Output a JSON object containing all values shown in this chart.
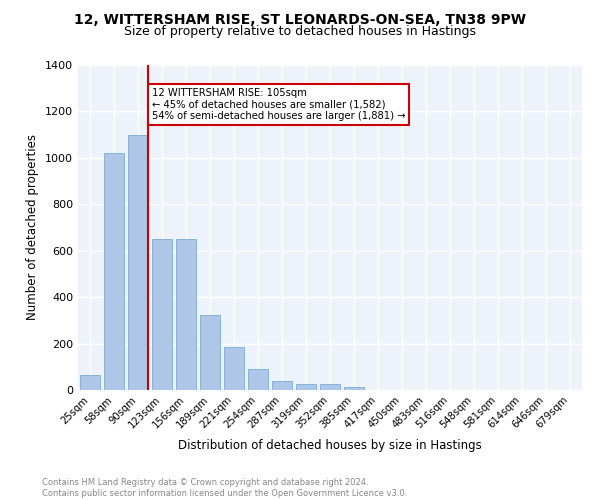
{
  "title1": "12, WITTERSHAM RISE, ST LEONARDS-ON-SEA, TN38 9PW",
  "title2": "Size of property relative to detached houses in Hastings",
  "xlabel": "Distribution of detached houses by size in Hastings",
  "ylabel": "Number of detached properties",
  "categories": [
    "25sqm",
    "58sqm",
    "90sqm",
    "123sqm",
    "156sqm",
    "189sqm",
    "221sqm",
    "254sqm",
    "287sqm",
    "319sqm",
    "352sqm",
    "385sqm",
    "417sqm",
    "450sqm",
    "483sqm",
    "516sqm",
    "548sqm",
    "581sqm",
    "614sqm",
    "646sqm",
    "679sqm"
  ],
  "values": [
    65,
    1020,
    1100,
    650,
    650,
    325,
    185,
    90,
    40,
    28,
    25,
    15,
    0,
    0,
    0,
    0,
    0,
    0,
    0,
    0,
    0
  ],
  "bar_color": "#aec6e8",
  "bar_edge_color": "#7aadd4",
  "vline_color": "#cc0000",
  "annotation_text": "12 WITTERSHAM RISE: 105sqm\n← 45% of detached houses are smaller (1,582)\n54% of semi-detached houses are larger (1,881) →",
  "annotation_box_color": "#ffffff",
  "annotation_box_edge_color": "#cc0000",
  "ylim": [
    0,
    1400
  ],
  "yticks": [
    0,
    200,
    400,
    600,
    800,
    1000,
    1200,
    1400
  ],
  "background_color": "#eef2fb",
  "footer_text": "Contains HM Land Registry data © Crown copyright and database right 2024.\nContains public sector information licensed under the Open Government Licence v3.0.",
  "title1_fontsize": 10,
  "title2_fontsize": 9
}
